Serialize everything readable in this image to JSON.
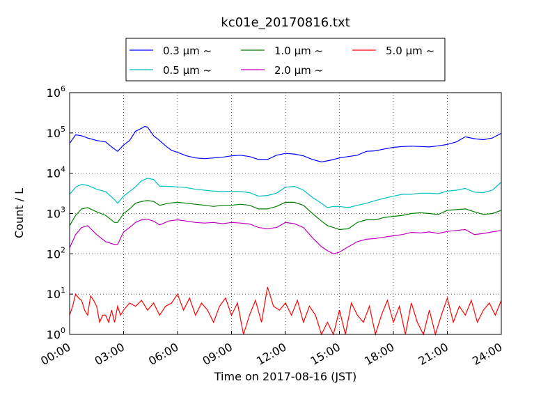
{
  "chart_data": {
    "type": "line",
    "title": "kc01e_20170816.txt",
    "xlabel": "Time on 2017-08-16 (JST)",
    "ylabel": "Count / L",
    "y_scale": "log",
    "ylim": [
      1,
      1000000
    ],
    "xlim": [
      "00:00",
      "24:00"
    ],
    "grid": true,
    "legend_position": "top-center",
    "x_ticks": [
      "00:00",
      "03:00",
      "06:00",
      "09:00",
      "12:00",
      "15:00",
      "18:00",
      "21:00",
      "24:00"
    ],
    "y_ticks": [
      {
        "base": "10",
        "exp": "0"
      },
      {
        "base": "10",
        "exp": "1"
      },
      {
        "base": "10",
        "exp": "2"
      },
      {
        "base": "10",
        "exp": "3"
      },
      {
        "base": "10",
        "exp": "4"
      },
      {
        "base": "10",
        "exp": "5"
      },
      {
        "base": "10",
        "exp": "6"
      }
    ],
    "series": [
      {
        "name": "0.3 μm ~",
        "color": "#0000ff",
        "x": [
          "00:00",
          "00:20",
          "00:40",
          "01:00",
          "01:30",
          "02:00",
          "02:20",
          "02:40",
          "03:00",
          "03:20",
          "03:40",
          "04:00",
          "04:10",
          "04:20",
          "04:40",
          "05:00",
          "05:20",
          "05:40",
          "06:00",
          "06:30",
          "07:00",
          "07:30",
          "08:00",
          "08:30",
          "09:00",
          "09:30",
          "10:00",
          "10:30",
          "11:00",
          "11:30",
          "12:00",
          "12:30",
          "13:00",
          "13:30",
          "14:00",
          "14:30",
          "15:00",
          "15:30",
          "16:00",
          "16:30",
          "17:00",
          "17:30",
          "18:00",
          "18:30",
          "19:00",
          "19:30",
          "20:00",
          "20:30",
          "21:00",
          "21:30",
          "22:00",
          "22:30",
          "23:00",
          "23:30",
          "24:00"
        ],
        "y": [
          55000,
          90000,
          85000,
          75000,
          65000,
          60000,
          45000,
          35000,
          50000,
          65000,
          110000,
          130000,
          145000,
          140000,
          85000,
          65000,
          48000,
          37000,
          33000,
          27000,
          24000,
          23000,
          24000,
          25000,
          27000,
          28000,
          26000,
          22000,
          22000,
          28000,
          31000,
          30000,
          27000,
          22000,
          19000,
          21000,
          24000,
          26000,
          28000,
          35000,
          36000,
          40000,
          44000,
          46000,
          47000,
          46000,
          45000,
          48000,
          52000,
          60000,
          80000,
          72000,
          68000,
          75000,
          98000
        ]
      },
      {
        "name": "0.5 μm ~",
        "color": "#00bfbf",
        "x": [
          "00:00",
          "00:20",
          "00:40",
          "01:00",
          "01:30",
          "02:00",
          "02:30",
          "02:40",
          "03:00",
          "03:20",
          "03:40",
          "04:00",
          "04:20",
          "04:40",
          "05:00",
          "05:30",
          "06:00",
          "06:30",
          "07:00",
          "07:30",
          "08:00",
          "08:30",
          "09:00",
          "09:30",
          "10:00",
          "10:30",
          "11:00",
          "11:30",
          "12:00",
          "12:30",
          "13:00",
          "13:30",
          "14:00",
          "14:20",
          "14:40",
          "15:00",
          "15:30",
          "16:00",
          "16:30",
          "17:00",
          "17:30",
          "18:00",
          "18:30",
          "19:00",
          "19:30",
          "20:00",
          "20:30",
          "21:00",
          "21:30",
          "22:00",
          "22:30",
          "23:00",
          "23:30",
          "24:00"
        ],
        "y": [
          3000,
          4500,
          5300,
          5000,
          4000,
          3500,
          2200,
          1800,
          2700,
          3500,
          4600,
          6500,
          7500,
          7000,
          4800,
          4700,
          4600,
          4400,
          4000,
          3800,
          3600,
          3500,
          3600,
          3500,
          3300,
          2700,
          2800,
          3200,
          4500,
          4700,
          3800,
          2500,
          1800,
          1400,
          1500,
          1500,
          1400,
          1600,
          1800,
          2100,
          2400,
          2700,
          3000,
          3000,
          3200,
          3200,
          3100,
          3600,
          3800,
          4200,
          3400,
          3300,
          3800,
          6000
        ]
      },
      {
        "name": "1.0 μm ~",
        "color": "#008000",
        "x": [
          "00:00",
          "00:20",
          "00:40",
          "01:00",
          "01:30",
          "02:00",
          "02:30",
          "02:40",
          "03:00",
          "03:20",
          "03:40",
          "04:00",
          "04:20",
          "04:40",
          "05:00",
          "05:30",
          "06:00",
          "06:30",
          "07:00",
          "07:30",
          "08:00",
          "08:30",
          "09:00",
          "09:30",
          "10:00",
          "10:30",
          "11:00",
          "11:30",
          "12:00",
          "12:30",
          "13:00",
          "13:30",
          "14:00",
          "14:20",
          "14:40",
          "15:00",
          "15:30",
          "16:00",
          "16:30",
          "17:00",
          "17:30",
          "18:00",
          "18:30",
          "19:00",
          "19:30",
          "20:00",
          "20:30",
          "21:00",
          "21:30",
          "22:00",
          "22:30",
          "23:00",
          "23:30",
          "24:00"
        ],
        "y": [
          500,
          900,
          1300,
          1400,
          1100,
          900,
          600,
          600,
          1000,
          1300,
          1800,
          2000,
          2100,
          2000,
          1600,
          1800,
          1900,
          1800,
          1700,
          1600,
          1500,
          1600,
          1600,
          1700,
          1600,
          1300,
          1300,
          1500,
          1900,
          1900,
          1600,
          1000,
          650,
          500,
          450,
          400,
          420,
          600,
          700,
          700,
          800,
          850,
          900,
          1000,
          1050,
          1000,
          950,
          1200,
          1250,
          1300,
          1100,
          950,
          1000,
          1200
        ]
      },
      {
        "name": "2.0 μm ~",
        "color": "#bf00bf",
        "x": [
          "00:00",
          "00:20",
          "00:40",
          "01:00",
          "01:30",
          "02:00",
          "02:30",
          "02:40",
          "03:00",
          "03:20",
          "03:40",
          "04:00",
          "04:20",
          "04:40",
          "05:00",
          "05:30",
          "06:00",
          "06:30",
          "07:00",
          "07:30",
          "08:00",
          "08:30",
          "09:00",
          "09:30",
          "10:00",
          "10:30",
          "11:00",
          "11:30",
          "12:00",
          "12:30",
          "13:00",
          "13:30",
          "14:00",
          "14:20",
          "14:40",
          "15:00",
          "15:30",
          "16:00",
          "16:30",
          "17:00",
          "17:30",
          "18:00",
          "18:30",
          "19:00",
          "19:30",
          "20:00",
          "20:30",
          "21:00",
          "21:30",
          "22:00",
          "22:30",
          "23:00",
          "23:30",
          "24:00"
        ],
        "y": [
          140,
          300,
          450,
          500,
          300,
          200,
          170,
          170,
          350,
          450,
          600,
          700,
          720,
          650,
          520,
          650,
          700,
          650,
          600,
          580,
          600,
          560,
          600,
          580,
          550,
          450,
          420,
          450,
          600,
          560,
          450,
          250,
          150,
          120,
          100,
          110,
          150,
          200,
          230,
          240,
          260,
          280,
          300,
          340,
          330,
          350,
          320,
          360,
          380,
          400,
          300,
          320,
          350,
          380
        ]
      },
      {
        "name": "5.0 μm ~",
        "color": "#ff0000",
        "x": [
          "00:00",
          "00:10",
          "00:20",
          "00:30",
          "00:40",
          "00:50",
          "01:00",
          "01:10",
          "01:20",
          "01:30",
          "01:40",
          "01:50",
          "02:00",
          "02:10",
          "02:20",
          "02:30",
          "02:40",
          "02:50",
          "03:00",
          "03:20",
          "03:40",
          "04:00",
          "04:20",
          "04:40",
          "05:00",
          "05:20",
          "05:40",
          "06:00",
          "06:20",
          "06:40",
          "07:00",
          "07:20",
          "07:40",
          "08:00",
          "08:20",
          "08:40",
          "09:00",
          "09:20",
          "09:40",
          "10:00",
          "10:20",
          "10:40",
          "11:00",
          "11:20",
          "11:40",
          "12:00",
          "12:20",
          "12:40",
          "13:00",
          "13:20",
          "13:40",
          "14:00",
          "14:20",
          "14:40",
          "15:00",
          "15:20",
          "15:40",
          "16:00",
          "16:20",
          "16:40",
          "17:00",
          "17:20",
          "17:40",
          "18:00",
          "18:20",
          "18:40",
          "19:00",
          "19:20",
          "19:40",
          "20:00",
          "20:20",
          "20:40",
          "21:00",
          "21:20",
          "21:40",
          "22:00",
          "22:20",
          "22:40",
          "23:00",
          "23:20",
          "23:40",
          "24:00"
        ],
        "y": [
          3,
          5,
          10,
          8,
          7,
          4,
          3,
          9,
          7,
          5,
          2,
          3,
          3,
          2,
          4,
          2,
          5,
          3,
          4,
          6,
          5,
          7,
          4,
          6,
          3,
          5,
          6,
          10,
          4,
          8,
          3,
          6,
          4,
          2,
          5,
          8,
          3,
          6,
          1,
          3,
          7,
          2,
          15,
          5,
          4,
          6,
          3,
          7,
          2,
          5,
          3,
          1,
          2,
          1,
          4,
          1,
          6,
          3,
          2,
          5,
          1,
          3,
          7,
          2,
          5,
          1,
          6,
          2,
          1,
          4,
          1,
          3,
          8,
          2,
          5,
          3,
          7,
          2,
          4,
          6,
          3,
          7
        ]
      }
    ]
  }
}
